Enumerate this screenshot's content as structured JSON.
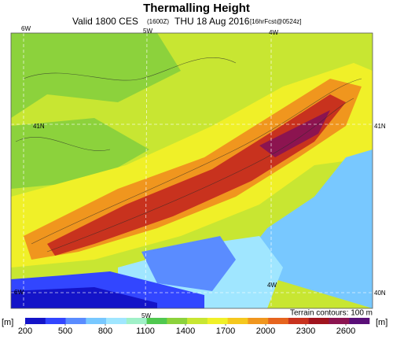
{
  "header": {
    "title": "Thermalling Height",
    "subtitle": {
      "valid": "Valid 1800 CES",
      "utc": "(1600Z)",
      "date": "THU 18 Aug 2016",
      "forecast": "[16hrFcst@0524z]"
    }
  },
  "map": {
    "labels": {
      "top_6w": "6W",
      "top_5w": "5W",
      "top_4w": "4W",
      "left_41n": "41N",
      "right_41n": "41N",
      "bottom_6w": "6W",
      "bottom_5w": "5W",
      "inner_4w": "4W",
      "right_40n": "40N"
    },
    "contour_note": "Terrain contours: 100 m"
  },
  "colorbar": {
    "unit_left": "[m]",
    "unit_right": "[m]",
    "ticks": [
      200,
      500,
      800,
      1100,
      1400,
      1700,
      2000,
      2300,
      2600
    ],
    "colors": [
      "#1414c8",
      "#3246ff",
      "#5a8cff",
      "#78c8ff",
      "#a0e6ff",
      "#a0f0c8",
      "#50c850",
      "#8cd23c",
      "#c8e632",
      "#f0f028",
      "#f5c81e",
      "#f0961e",
      "#e6641e",
      "#c8321e",
      "#a0141e",
      "#8c1450",
      "#5a0f78"
    ]
  }
}
